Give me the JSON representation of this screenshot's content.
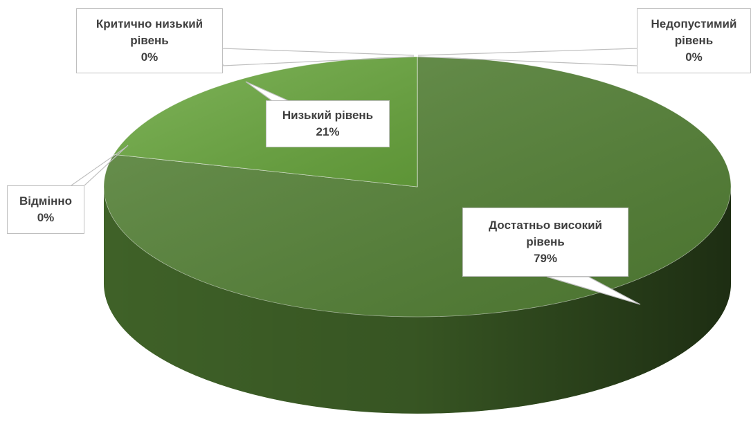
{
  "chart_data": {
    "type": "pie",
    "categories": [
      "Достатньо високий рівень",
      "Відмінно",
      "Низький рівень",
      "Критично низький рівень",
      "Недопустимий рівень"
    ],
    "values": [
      79,
      0,
      21,
      0,
      0
    ],
    "value_labels": [
      "79%",
      "0%",
      "21%",
      "0%",
      "0%"
    ],
    "colors": [
      "#548235",
      "#4e7a30",
      "#6aa83e",
      "#a9d18e",
      "#c5e0b4"
    ]
  }
}
